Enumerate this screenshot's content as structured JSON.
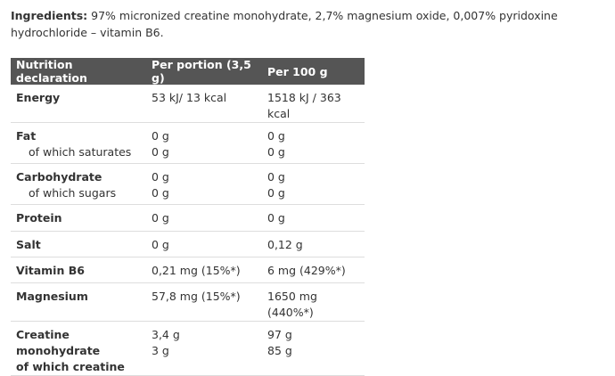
{
  "ingredients": {
    "label": "Ingredients:",
    "text": "97% micronized creatine monohydrate, 2,7% magnesium oxide, 0,007% pyridoxine hydrochloride – vitamin B6."
  },
  "table": {
    "header": [
      "Nutrition declaration",
      "Per portion (3,5 g)",
      "Per 100 g"
    ],
    "rows": [
      [
        [
          "Energy"
        ],
        [
          "53  kJ/  13 kcal"
        ],
        [
          "1518 kJ / 363 kcal"
        ]
      ],
      [
        [
          "Fat",
          "of which saturates"
        ],
        [
          "0 g",
          "0 g"
        ],
        [
          "0 g",
          "0 g"
        ]
      ],
      [
        [
          "Carbohydrate",
          "of which sugars"
        ],
        [
          "0 g",
          "0 g"
        ],
        [
          "0 g",
          "0 g"
        ]
      ],
      [
        [
          "Protein"
        ],
        [
          "0 g"
        ],
        [
          "0 g"
        ]
      ],
      [
        [
          "Salt"
        ],
        [
          "0 g"
        ],
        [
          "0,12 g"
        ]
      ],
      [
        [
          "Vitamin B6"
        ],
        [
          "0,21 mg (15%*)"
        ],
        [
          "6 mg (429%*)"
        ]
      ],
      [
        [
          "Magnesium"
        ],
        [
          "57,8 mg (15%*)"
        ],
        [
          "1650 mg (440%*)"
        ]
      ],
      [
        [
          "Creatine monohydrate",
          "of which creatine"
        ],
        [
          "3,4 g",
          "3 g"
        ],
        [
          "97 g",
          "85 g"
        ]
      ]
    ]
  }
}
